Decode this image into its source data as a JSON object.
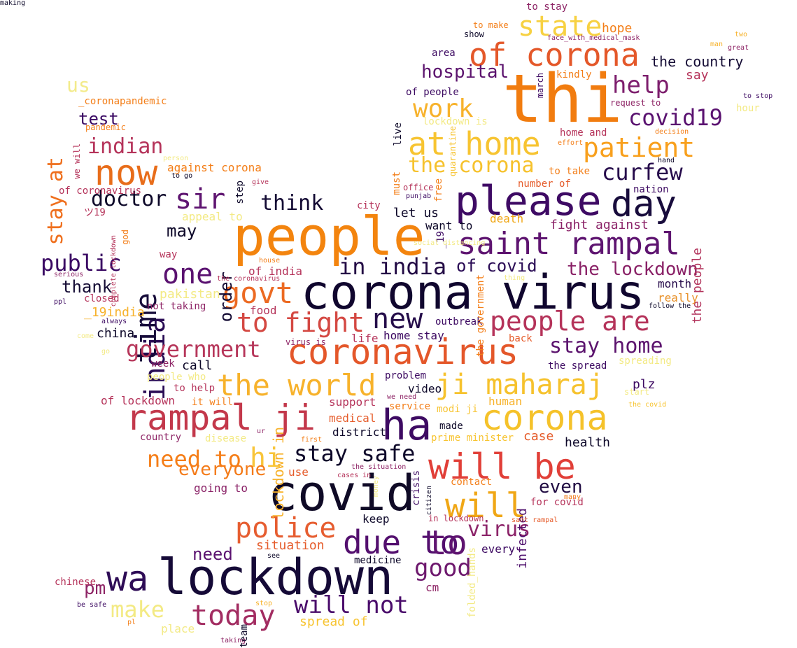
{
  "word_cloud": {
    "words": [
      {
        "text": "corona virus",
        "color": "#10062e"
      },
      {
        "text": "people",
        "color": "#f3840e"
      },
      {
        "text": "lockdown",
        "color": "#150a37"
      },
      {
        "text": "thi",
        "color": "#f17c0f"
      },
      {
        "text": "covid",
        "color": "#0f0a26"
      },
      {
        "text": "please",
        "color": "#3e0a64"
      },
      {
        "text": "coronavirus",
        "color": "#e4572a"
      },
      {
        "text": "corona",
        "color": "#f5c22a"
      },
      {
        "text": "rampal ji",
        "color": "#c3384b"
      },
      {
        "text": "saint rampal",
        "color": "#5e1470"
      },
      {
        "text": "ha",
        "color": "#3d0a62"
      },
      {
        "text": "will be",
        "color": "#e13f38"
      },
      {
        "text": "ji maharaj",
        "color": "#f6c22d"
      },
      {
        "text": "at home",
        "color": "#f7c431"
      },
      {
        "text": "day",
        "color": "#180c3c"
      },
      {
        "text": "of corona",
        "color": "#e4582a"
      },
      {
        "text": "now",
        "color": "#e86d1a"
      },
      {
        "text": "wa",
        "color": "#2e0c56"
      },
      {
        "text": "the world",
        "color": "#f7b22b"
      },
      {
        "text": "due to",
        "color": "#530f6e"
      },
      {
        "text": "india",
        "color": "#290b54"
      },
      {
        "text": "time",
        "color": "#170c3a"
      },
      {
        "text": "to fight",
        "color": "#d44842"
      },
      {
        "text": "people are",
        "color": "#b5335a"
      },
      {
        "text": "patient",
        "color": "#f8a01d"
      },
      {
        "text": "today",
        "color": "#a22c61"
      },
      {
        "text": "stay safe",
        "color": "#0d0829"
      },
      {
        "text": "police",
        "color": "#e65d30"
      },
      {
        "text": "govt",
        "color": "#ec6a22"
      },
      {
        "text": "government",
        "color": "#b6365a"
      },
      {
        "text": "will",
        "color": "#f0a716"
      },
      {
        "text": "new",
        "color": "#250d4a"
      },
      {
        "text": "in india",
        "color": "#230b45"
      },
      {
        "text": "state",
        "color": "#f7d142"
      },
      {
        "text": "help",
        "color": "#7d1e6d"
      },
      {
        "text": "to",
        "color": "#5f1470"
      },
      {
        "text": "work",
        "color": "#f7b22b"
      },
      {
        "text": "the corona",
        "color": "#f6c22d"
      },
      {
        "text": "sir",
        "color": "#5e1470"
      },
      {
        "text": "one",
        "color": "#5a1270"
      },
      {
        "text": "need to",
        "color": "#f57e18"
      },
      {
        "text": "hi",
        "color": "#f8c53a"
      },
      {
        "text": "stay home",
        "color": "#5c146e"
      },
      {
        "text": "curfew",
        "color": "#260b4b"
      },
      {
        "text": "covid19",
        "color": "#5a1270"
      },
      {
        "text": "make",
        "color": "#f3ea84"
      },
      {
        "text": "good",
        "color": "#6e196e"
      },
      {
        "text": "will not",
        "color": "#4a0c6b"
      },
      {
        "text": "stay at",
        "color": "#ef6f1d"
      },
      {
        "text": "indian",
        "color": "#b5335a"
      },
      {
        "text": "doctor",
        "color": "#0d0829"
      },
      {
        "text": "think",
        "color": "#130a33"
      },
      {
        "text": "public",
        "color": "#3a0963"
      },
      {
        "text": "everyone",
        "color": "#f47b19"
      },
      {
        "text": "virus",
        "color": "#8c2469"
      },
      {
        "text": "hospital",
        "color": "#5c146e"
      },
      {
        "text": "the lockdown",
        "color": "#8a2267"
      },
      {
        "text": "us",
        "color": "#f3eb8b"
      },
      {
        "text": "even",
        "color": "#210c43"
      },
      {
        "text": "pm",
        "color": "#8e2566"
      },
      {
        "text": "thank",
        "color": "#140b34"
      },
      {
        "text": "need",
        "color": "#5b1270"
      },
      {
        "text": "may",
        "color": "#0d0829"
      },
      {
        "text": "test",
        "color": "#3a0963"
      },
      {
        "text": "of covid",
        "color": "#2a0c55"
      },
      {
        "text": "order",
        "color": "#130a33"
      },
      {
        "text": "situation",
        "color": "#e55b2a"
      },
      {
        "text": "the country",
        "color": "#140b34"
      },
      {
        "text": "lockdown in",
        "color": "#f7b22b"
      },
      {
        "text": "fight against",
        "color": "#8b2368"
      },
      {
        "text": "infected",
        "color": "#4c0d6b"
      },
      {
        "text": "spread of",
        "color": "#f7c431"
      },
      {
        "text": "plz",
        "color": "#3d0a62"
      },
      {
        "text": "health",
        "color": "#0d0829"
      },
      {
        "text": "the people",
        "color": "#b2345c"
      },
      {
        "text": "support",
        "color": "#b5335a"
      },
      {
        "text": "say",
        "color": "#b5335a"
      },
      {
        "text": "hope",
        "color": "#f37e18"
      },
      {
        "text": "case",
        "color": "#e55b2a"
      },
      {
        "text": "month",
        "color": "#260b4b"
      },
      {
        "text": "really",
        "color": "#e8912a"
      },
      {
        "text": "of india",
        "color": "#b5335a"
      },
      {
        "text": "pakistan",
        "color": "#f3ea84"
      },
      {
        "text": "death",
        "color": "#f0a716"
      },
      {
        "text": "let us",
        "color": "#0d0829"
      },
      {
        "text": "want to",
        "color": "#0d0829"
      },
      {
        "text": "home stay",
        "color": "#3d0a62"
      },
      {
        "text": "china",
        "color": "#0d0829"
      },
      {
        "text": "life",
        "color": "#b5335a"
      },
      {
        "text": "call",
        "color": "#0d0829"
      },
      {
        "text": "_19india",
        "color": "#f7b22b"
      },
      {
        "text": "food",
        "color": "#b5335a"
      },
      {
        "text": "closed",
        "color": "#b5335a"
      },
      {
        "text": "video",
        "color": "#0d0829"
      },
      {
        "text": "keep",
        "color": "#0d0829"
      },
      {
        "text": "medicine",
        "color": "#0d0829"
      },
      {
        "text": "every",
        "color": "#3d0a62"
      },
      {
        "text": "cm",
        "color": "#8e2566"
      },
      {
        "text": "medical",
        "color": "#e55b2a"
      },
      {
        "text": "district",
        "color": "#0d0829"
      },
      {
        "text": "service",
        "color": "#f37e18"
      },
      {
        "text": "modi ji",
        "color": "#f7c431"
      },
      {
        "text": "prime minister",
        "color": "#f7c431"
      },
      {
        "text": "problem",
        "color": "#3d0a62"
      },
      {
        "text": "made",
        "color": "#0d0829"
      },
      {
        "text": "place",
        "color": "#f3ea84"
      },
      {
        "text": "going to",
        "color": "#8a2267"
      },
      {
        "text": "use",
        "color": "#e55b2a"
      },
      {
        "text": "country",
        "color": "#8e2566"
      },
      {
        "text": "disease",
        "color": "#f3ea84"
      },
      {
        "text": "of lockdown",
        "color": "#b5335a"
      },
      {
        "text": "it will",
        "color": "#f37e18"
      },
      {
        "text": "people who",
        "color": "#f3ea84"
      },
      {
        "text": "to help",
        "color": "#b5335a"
      },
      {
        "text": "week",
        "color": "#8e2566"
      },
      {
        "text": "the spread",
        "color": "#3d0a62"
      },
      {
        "text": "spreading",
        "color": "#f3ea84"
      },
      {
        "text": "start",
        "color": "#f3ea84"
      },
      {
        "text": "back",
        "color": "#e55b2a"
      },
      {
        "text": "outbreak",
        "color": "#3d0a62"
      },
      {
        "text": "not taking",
        "color": "#8e2566"
      },
      {
        "text": "to take",
        "color": "#f37e18"
      },
      {
        "text": "number of",
        "color": "#e55b2a"
      },
      {
        "text": "nation",
        "color": "#3d0a62"
      },
      {
        "text": "home and",
        "color": "#b5335a"
      },
      {
        "text": "request to",
        "color": "#8e2566"
      },
      {
        "text": "kindly",
        "color": "#f37e18"
      },
      {
        "text": "march",
        "color": "#3d0a62"
      },
      {
        "text": "area",
        "color": "#3d0a62"
      },
      {
        "text": "of people",
        "color": "#3d0a62"
      },
      {
        "text": "show",
        "color": "#0d0829"
      },
      {
        "text": "to make",
        "color": "#f37e18"
      },
      {
        "text": "to stay",
        "color": "#8e2566"
      },
      {
        "text": "face_with_medical_mask",
        "color": "#8e2566"
      },
      {
        "text": "hour",
        "color": "#f3ea84"
      },
      {
        "text": "decision",
        "color": "#f37e18"
      },
      {
        "text": "effort",
        "color": "#f37e18"
      },
      {
        "text": "hand",
        "color": "#0d0829"
      },
      {
        "text": "to stop",
        "color": "#3d0a62"
      },
      {
        "text": "two",
        "color": "#f7b22b"
      },
      {
        "text": "man",
        "color": "#f7b22b"
      },
      {
        "text": "great",
        "color": "#8e2566"
      },
      {
        "text": "lockdown is",
        "color": "#f3ea84"
      },
      {
        "text": "live",
        "color": "#0d0829"
      },
      {
        "text": "quarantine",
        "color": "#f7c431"
      },
      {
        "text": "office",
        "color": "#b5335a"
      },
      {
        "text": "punjab",
        "color": "#3d0a62"
      },
      {
        "text": "must",
        "color": "#f37e18"
      },
      {
        "text": "free",
        "color": "#f37e18"
      },
      {
        "text": "_19",
        "color": "#3d0a62"
      },
      {
        "text": "city",
        "color": "#b5335a"
      },
      {
        "text": "social distancing",
        "color": "#f3ea84"
      },
      {
        "text": "house",
        "color": "#f37e18"
      },
      {
        "text": "the coronavirus",
        "color": "#b5335a"
      },
      {
        "text": "the government",
        "color": "#f37e18"
      },
      {
        "text": "thing",
        "color": "#f3ea84"
      },
      {
        "text": "follow the",
        "color": "#0d0829"
      },
      {
        "text": "virus is",
        "color": "#8e2566"
      },
      {
        "text": "we need",
        "color": "#8e2566"
      },
      {
        "text": "human",
        "color": "#f7b22b"
      },
      {
        "text": "the covid",
        "color": "#f7c431"
      },
      {
        "text": "ur",
        "color": "#8e2566"
      },
      {
        "text": "first",
        "color": "#f37e18"
      },
      {
        "text": "the situation",
        "color": "#8e2566"
      },
      {
        "text": "cases in",
        "color": "#b5335a"
      },
      {
        "text": "money",
        "color": "#f3ea84"
      },
      {
        "text": "citizen",
        "color": "#0d0829"
      },
      {
        "text": "crisis",
        "color": "#3d0a62"
      },
      {
        "text": "folded_hands",
        "color": "#f3ea84"
      },
      {
        "text": "contact",
        "color": "#f37e18"
      },
      {
        "text": "in lockdown",
        "color": "#b5335a"
      },
      {
        "text": "sant rampal",
        "color": "#e55b2a"
      },
      {
        "text": "for covid",
        "color": "#b5335a"
      },
      {
        "text": "many",
        "color": "#f37e18"
      },
      {
        "text": "see",
        "color": "#0d0829"
      },
      {
        "text": "stop",
        "color": "#f7b22b"
      },
      {
        "text": "taking",
        "color": "#8e2566"
      },
      {
        "text": "team",
        "color": "#0d0829"
      },
      {
        "text": "pl",
        "color": "#f37e18"
      },
      {
        "text": "be safe",
        "color": "#3d0a62"
      },
      {
        "text": "chinese",
        "color": "#b5335a"
      },
      {
        "text": "go",
        "color": "#f3ea84"
      },
      {
        "text": "come",
        "color": "#f3ea84"
      },
      {
        "text": "ppl",
        "color": "#3d0a62"
      },
      {
        "text": "always",
        "color": "#3d0a62"
      },
      {
        "text": "serious",
        "color": "#8e2566"
      },
      {
        "text": "complete lockdown",
        "color": "#b5335a"
      },
      {
        "text": "god",
        "color": "#f37e18"
      },
      {
        "text": "way",
        "color": "#b5335a"
      },
      {
        "text": "appeal to",
        "color": "#f3ea84"
      },
      {
        "text": "ツ19",
        "color": "#b5335a"
      },
      {
        "text": "of coronavirus",
        "color": "#b5335a"
      },
      {
        "text": "step",
        "color": "#0d0829"
      },
      {
        "text": "give",
        "color": "#b5335a"
      },
      {
        "text": "to go",
        "color": "#0d0829"
      },
      {
        "text": "against corona",
        "color": "#f37e18"
      },
      {
        "text": "person",
        "color": "#f3ea84"
      },
      {
        "text": "we will",
        "color": "#b5335a"
      },
      {
        "text": "pandemic",
        "color": "#f37e18"
      },
      {
        "text": "_coronapandemic",
        "color": "#f37e18"
      },
      {
        "text": "making",
        "color": "#0d0829"
      }
    ]
  }
}
